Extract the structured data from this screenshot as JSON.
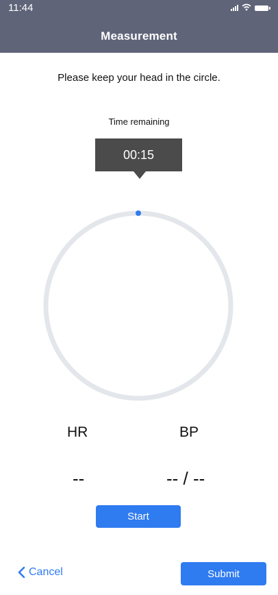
{
  "status_bar": {
    "time": "11:44"
  },
  "header": {
    "title": "Measurement"
  },
  "instruction": "Please keep your head in the circle.",
  "timer": {
    "label": "Time remaining",
    "value": "00:15"
  },
  "progress": {
    "fraction": 0.0
  },
  "metrics": {
    "hr": {
      "label": "HR",
      "value": "--"
    },
    "bp": {
      "label": "BP",
      "value": "-- / --"
    }
  },
  "buttons": {
    "start": "Start",
    "cancel": "Cancel",
    "submit": "Submit"
  },
  "icons": {
    "cancel": "chevron-left-icon",
    "signal": "signal-icon",
    "wifi": "wifi-icon",
    "battery": "battery-icon"
  },
  "colors": {
    "header_bg": "#5f6479",
    "accent": "#2f7bf0",
    "ring": "#e3e6ea",
    "timer_bg": "#4b4b4b"
  }
}
